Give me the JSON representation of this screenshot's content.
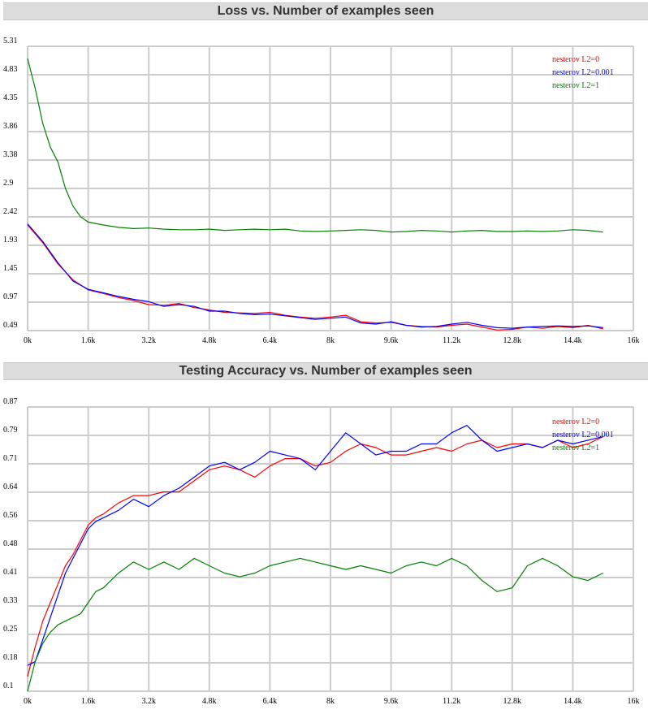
{
  "colors": {
    "series_a": "#ff0000",
    "series_b": "#0000ff",
    "series_c": "#008000",
    "grid": "#cccccc",
    "title_bg": "#dcdcdc"
  },
  "chart_data": [
    {
      "type": "line",
      "title": "Loss vs. Number of examples seen",
      "xlabel": "",
      "ylabel": "",
      "xlim": [
        0,
        16000
      ],
      "ylim": [
        0.49,
        5.31
      ],
      "x_ticks": [
        "0k",
        "1.6k",
        "3.2k",
        "4.8k",
        "6.4k",
        "8k",
        "9.6k",
        "11.2k",
        "12.8k",
        "14.4k",
        "16k"
      ],
      "y_ticks": [
        "0.49",
        "0.97",
        "1.45",
        "1.93",
        "2.42",
        "2.9",
        "3.38",
        "3.86",
        "4.35",
        "4.83",
        "5.31"
      ],
      "grid": true,
      "legend_position": "top-right",
      "series": [
        {
          "name": "nesterov L2=0",
          "color": "#ff0000",
          "x": [
            0,
            400,
            800,
            1200,
            1600,
            2000,
            2400,
            2800,
            3200,
            3600,
            4000,
            4400,
            4800,
            5200,
            5600,
            6000,
            6400,
            6800,
            7200,
            7600,
            8000,
            8400,
            8800,
            9200,
            9600,
            10000,
            10400,
            10800,
            11200,
            11600,
            12000,
            12400,
            12800,
            13200,
            13600,
            14000,
            14400,
            14800,
            15200
          ],
          "y": [
            2.28,
            1.98,
            1.62,
            1.35,
            1.18,
            1.12,
            1.05,
            1.0,
            0.93,
            0.92,
            0.95,
            0.88,
            0.84,
            0.8,
            0.79,
            0.78,
            0.8,
            0.75,
            0.72,
            0.7,
            0.72,
            0.75,
            0.64,
            0.62,
            0.63,
            0.58,
            0.56,
            0.55,
            0.58,
            0.6,
            0.55,
            0.5,
            0.51,
            0.55,
            0.53,
            0.56,
            0.54,
            0.58,
            0.52
          ]
        },
        {
          "name": "nesterov L2=0.001",
          "color": "#0000ff",
          "x": [
            0,
            400,
            800,
            1200,
            1600,
            2000,
            2400,
            2800,
            3200,
            3600,
            4000,
            4400,
            4800,
            5200,
            5600,
            6000,
            6400,
            6800,
            7200,
            7600,
            8000,
            8400,
            8800,
            9200,
            9600,
            10000,
            10400,
            10800,
            11200,
            11600,
            12000,
            12400,
            12800,
            13200,
            13600,
            14000,
            14400,
            14800,
            15200
          ],
          "y": [
            2.3,
            2.0,
            1.64,
            1.33,
            1.19,
            1.13,
            1.07,
            1.02,
            0.98,
            0.9,
            0.93,
            0.9,
            0.82,
            0.82,
            0.78,
            0.76,
            0.77,
            0.74,
            0.71,
            0.68,
            0.7,
            0.72,
            0.62,
            0.6,
            0.64,
            0.58,
            0.55,
            0.56,
            0.6,
            0.63,
            0.58,
            0.54,
            0.53,
            0.55,
            0.56,
            0.57,
            0.56,
            0.57,
            0.54
          ]
        },
        {
          "name": "nesterov L2=1",
          "color": "#008000",
          "x": [
            0,
            200,
            400,
            600,
            800,
            1000,
            1200,
            1400,
            1600,
            2000,
            2400,
            2800,
            3200,
            3600,
            4000,
            4400,
            4800,
            5200,
            5600,
            6000,
            6400,
            6800,
            7200,
            7600,
            8000,
            8400,
            8800,
            9200,
            9600,
            10000,
            10400,
            10800,
            11200,
            11600,
            12000,
            12400,
            12800,
            13200,
            13600,
            14000,
            14400,
            14800,
            15200
          ],
          "y": [
            5.1,
            4.6,
            4.0,
            3.6,
            3.35,
            2.9,
            2.6,
            2.42,
            2.33,
            2.28,
            2.24,
            2.22,
            2.23,
            2.21,
            2.2,
            2.2,
            2.21,
            2.19,
            2.2,
            2.21,
            2.2,
            2.21,
            2.18,
            2.17,
            2.18,
            2.19,
            2.2,
            2.19,
            2.16,
            2.17,
            2.19,
            2.18,
            2.16,
            2.18,
            2.19,
            2.17,
            2.17,
            2.18,
            2.17,
            2.18,
            2.2,
            2.19,
            2.16
          ]
        }
      ]
    },
    {
      "type": "line",
      "title": "Testing Accuracy vs. Number of examples seen",
      "xlabel": "",
      "ylabel": "",
      "xlim": [
        0,
        16000
      ],
      "ylim": [
        0.1,
        0.87
      ],
      "x_ticks": [
        "0k",
        "1.6k",
        "3.2k",
        "4.8k",
        "6.4k",
        "8k",
        "9.6k",
        "11.2k",
        "12.8k",
        "14.4k",
        "16k"
      ],
      "y_ticks": [
        "0.1",
        "0.18",
        "0.25",
        "0.33",
        "0.41",
        "0.48",
        "0.56",
        "0.64",
        "0.71",
        "0.79",
        "0.87"
      ],
      "grid": true,
      "legend_position": "top-right",
      "series": [
        {
          "name": "nesterov L2=0",
          "color": "#ff0000",
          "x": [
            0,
            200,
            400,
            600,
            800,
            1000,
            1200,
            1400,
            1600,
            1800,
            2000,
            2400,
            2800,
            3200,
            3600,
            4000,
            4400,
            4800,
            5200,
            5600,
            6000,
            6400,
            6800,
            7200,
            7600,
            8000,
            8400,
            8800,
            9200,
            9600,
            10000,
            10400,
            10800,
            11200,
            11600,
            12000,
            12400,
            12800,
            13200,
            13600,
            14000,
            14400,
            14800,
            15200
          ],
          "y": [
            0.14,
            0.22,
            0.29,
            0.34,
            0.39,
            0.44,
            0.47,
            0.51,
            0.55,
            0.57,
            0.58,
            0.61,
            0.63,
            0.63,
            0.64,
            0.64,
            0.67,
            0.7,
            0.71,
            0.7,
            0.68,
            0.71,
            0.73,
            0.73,
            0.71,
            0.72,
            0.75,
            0.77,
            0.76,
            0.74,
            0.74,
            0.75,
            0.76,
            0.75,
            0.77,
            0.78,
            0.76,
            0.77,
            0.77,
            0.76,
            0.78,
            0.76,
            0.77,
            0.79
          ]
        },
        {
          "name": "nesterov L2=0.001",
          "color": "#0000ff",
          "x": [
            0,
            200,
            400,
            600,
            800,
            1000,
            1200,
            1400,
            1600,
            1800,
            2000,
            2400,
            2800,
            3200,
            3600,
            4000,
            4400,
            4800,
            5200,
            5600,
            6000,
            6400,
            6800,
            7200,
            7600,
            8000,
            8400,
            8800,
            9200,
            9600,
            10000,
            10400,
            10800,
            11200,
            11600,
            12000,
            12400,
            12800,
            13200,
            13600,
            14000,
            14400,
            14800,
            15200
          ],
          "y": [
            0.17,
            0.18,
            0.24,
            0.3,
            0.36,
            0.42,
            0.46,
            0.5,
            0.54,
            0.56,
            0.57,
            0.59,
            0.62,
            0.6,
            0.63,
            0.65,
            0.68,
            0.71,
            0.72,
            0.7,
            0.72,
            0.75,
            0.74,
            0.73,
            0.7,
            0.75,
            0.8,
            0.77,
            0.74,
            0.75,
            0.75,
            0.77,
            0.77,
            0.8,
            0.82,
            0.78,
            0.75,
            0.76,
            0.77,
            0.76,
            0.78,
            0.77,
            0.78,
            0.79
          ]
        },
        {
          "name": "nesterov L2=1",
          "color": "#008000",
          "x": [
            0,
            200,
            400,
            600,
            800,
            1000,
            1200,
            1400,
            1600,
            1800,
            2000,
            2400,
            2800,
            3200,
            3600,
            4000,
            4400,
            4800,
            5200,
            5600,
            6000,
            6400,
            6800,
            7200,
            7600,
            8000,
            8400,
            8800,
            9200,
            9600,
            10000,
            10400,
            10800,
            11200,
            11600,
            12000,
            12400,
            12800,
            13200,
            13600,
            14000,
            14400,
            14800,
            15200
          ],
          "y": [
            0.1,
            0.18,
            0.23,
            0.26,
            0.28,
            0.29,
            0.3,
            0.31,
            0.34,
            0.37,
            0.38,
            0.42,
            0.45,
            0.43,
            0.45,
            0.43,
            0.46,
            0.44,
            0.42,
            0.41,
            0.42,
            0.44,
            0.45,
            0.46,
            0.45,
            0.44,
            0.43,
            0.44,
            0.43,
            0.42,
            0.44,
            0.45,
            0.44,
            0.46,
            0.44,
            0.4,
            0.37,
            0.38,
            0.44,
            0.46,
            0.44,
            0.41,
            0.4,
            0.42
          ]
        }
      ]
    }
  ]
}
